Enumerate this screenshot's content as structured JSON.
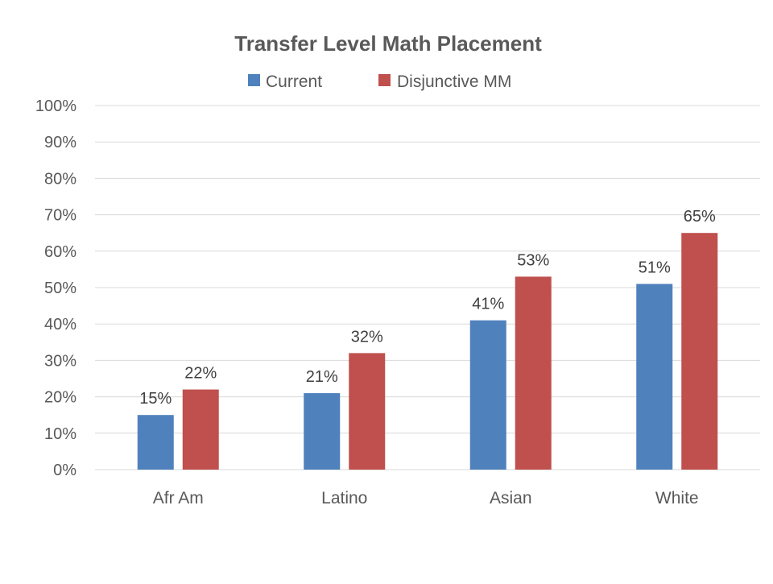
{
  "chart_data": {
    "type": "bar",
    "title": "Transfer Level Math Placement",
    "xlabel": "",
    "ylabel": "",
    "categories": [
      "Afr Am",
      "Latino",
      "Asian",
      "White"
    ],
    "series": [
      {
        "name": "Current",
        "color": "#4f81bd",
        "values": [
          15,
          21,
          41,
          51
        ],
        "labels": [
          "15%",
          "21%",
          "41%",
          "51%"
        ]
      },
      {
        "name": "Disjunctive MM",
        "color": "#c0504d",
        "values": [
          22,
          32,
          53,
          65
        ],
        "labels": [
          "22%",
          "32%",
          "53%",
          "65%"
        ]
      }
    ],
    "ylim": [
      0,
      100
    ],
    "yticks": [
      0,
      10,
      20,
      30,
      40,
      50,
      60,
      70,
      80,
      90,
      100
    ],
    "ytick_labels": [
      "0%",
      "10%",
      "20%",
      "30%",
      "40%",
      "50%",
      "60%",
      "70%",
      "80%",
      "90%",
      "100%"
    ],
    "grid": true,
    "legend_position": "top"
  }
}
